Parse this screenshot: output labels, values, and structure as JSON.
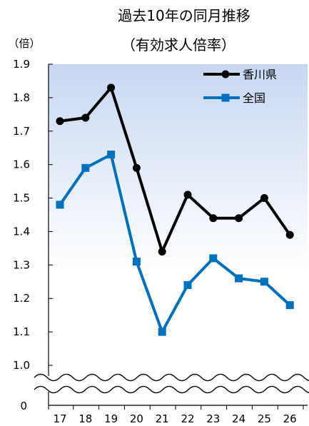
{
  "chart_data": {
    "type": "line",
    "title": "過去10年の同月推移",
    "subtitle": "（有効求人倍率）",
    "ylabel": "（倍）",
    "categories": [
      "17",
      "18",
      "19",
      "20",
      "21",
      "22",
      "23",
      "24",
      "25",
      "26"
    ],
    "y_ticks": [
      "1.9",
      "1.8",
      "1.7",
      "1.6",
      "1.5",
      "1.4",
      "1.3",
      "1.2",
      "1.1",
      "1.0"
    ],
    "y_zero_label": "0",
    "ylim": [
      1.0,
      1.9
    ],
    "axis_break": true,
    "legend_position": "top-right",
    "background": "gradient-blue",
    "series": [
      {
        "name": "香川県",
        "color": "#000000",
        "marker": "circle",
        "values": [
          1.73,
          1.74,
          1.83,
          1.59,
          1.34,
          1.51,
          1.44,
          1.44,
          1.5,
          1.39
        ]
      },
      {
        "name": "全国",
        "color": "#0070c0",
        "marker": "square",
        "values": [
          1.48,
          1.59,
          1.63,
          1.31,
          1.1,
          1.24,
          1.32,
          1.26,
          1.25,
          1.18
        ]
      }
    ]
  }
}
